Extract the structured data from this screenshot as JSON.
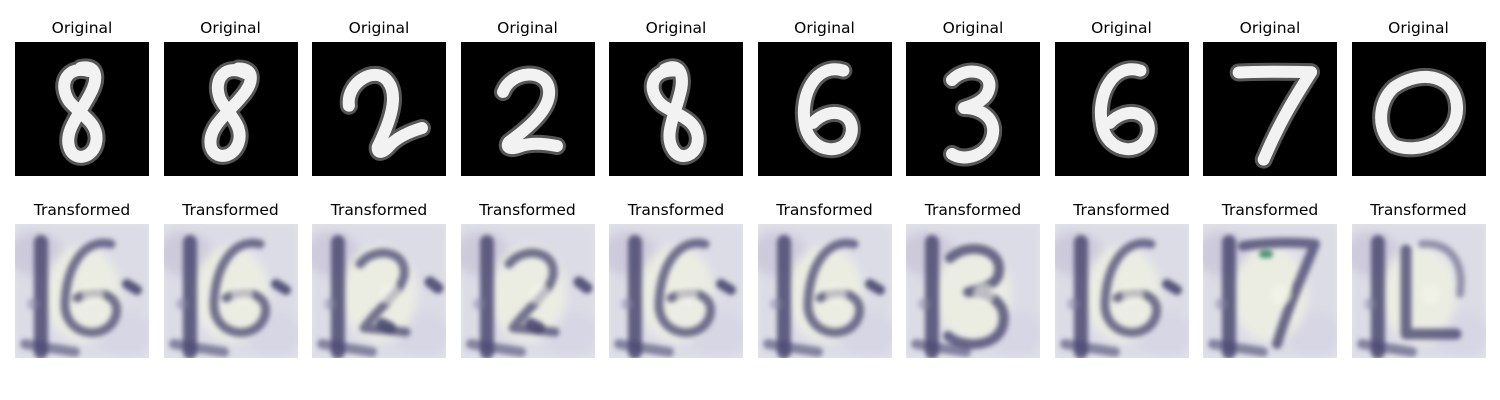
{
  "panels": [
    {
      "title": "Original",
      "digit": "8",
      "transformed_title": "Transformed",
      "transformed_glyph": "6"
    },
    {
      "title": "Original",
      "digit": "8",
      "transformed_title": "Transformed",
      "transformed_glyph": "6"
    },
    {
      "title": "Original",
      "digit": "2",
      "transformed_title": "Transformed",
      "transformed_glyph": "2"
    },
    {
      "title": "Original",
      "digit": "2",
      "transformed_title": "Transformed",
      "transformed_glyph": "2"
    },
    {
      "title": "Original",
      "digit": "8",
      "transformed_title": "Transformed",
      "transformed_glyph": "6"
    },
    {
      "title": "Original",
      "digit": "6",
      "transformed_title": "Transformed",
      "transformed_glyph": "16"
    },
    {
      "title": "Original",
      "digit": "3",
      "transformed_title": "Transformed",
      "transformed_glyph": "3"
    },
    {
      "title": "Original",
      "digit": "6",
      "transformed_title": "Transformed",
      "transformed_glyph": "16"
    },
    {
      "title": "Original",
      "digit": "7",
      "transformed_title": "Transformed",
      "transformed_glyph": "17"
    },
    {
      "title": "Original",
      "digit": "0",
      "transformed_title": "Transformed",
      "transformed_glyph": "10"
    }
  ],
  "colors": {
    "original_bg": "#000000",
    "digit_stroke": "#f2f2f2",
    "transformed_bg": "#e3e3ea",
    "transformed_ink": "#4a4870"
  }
}
